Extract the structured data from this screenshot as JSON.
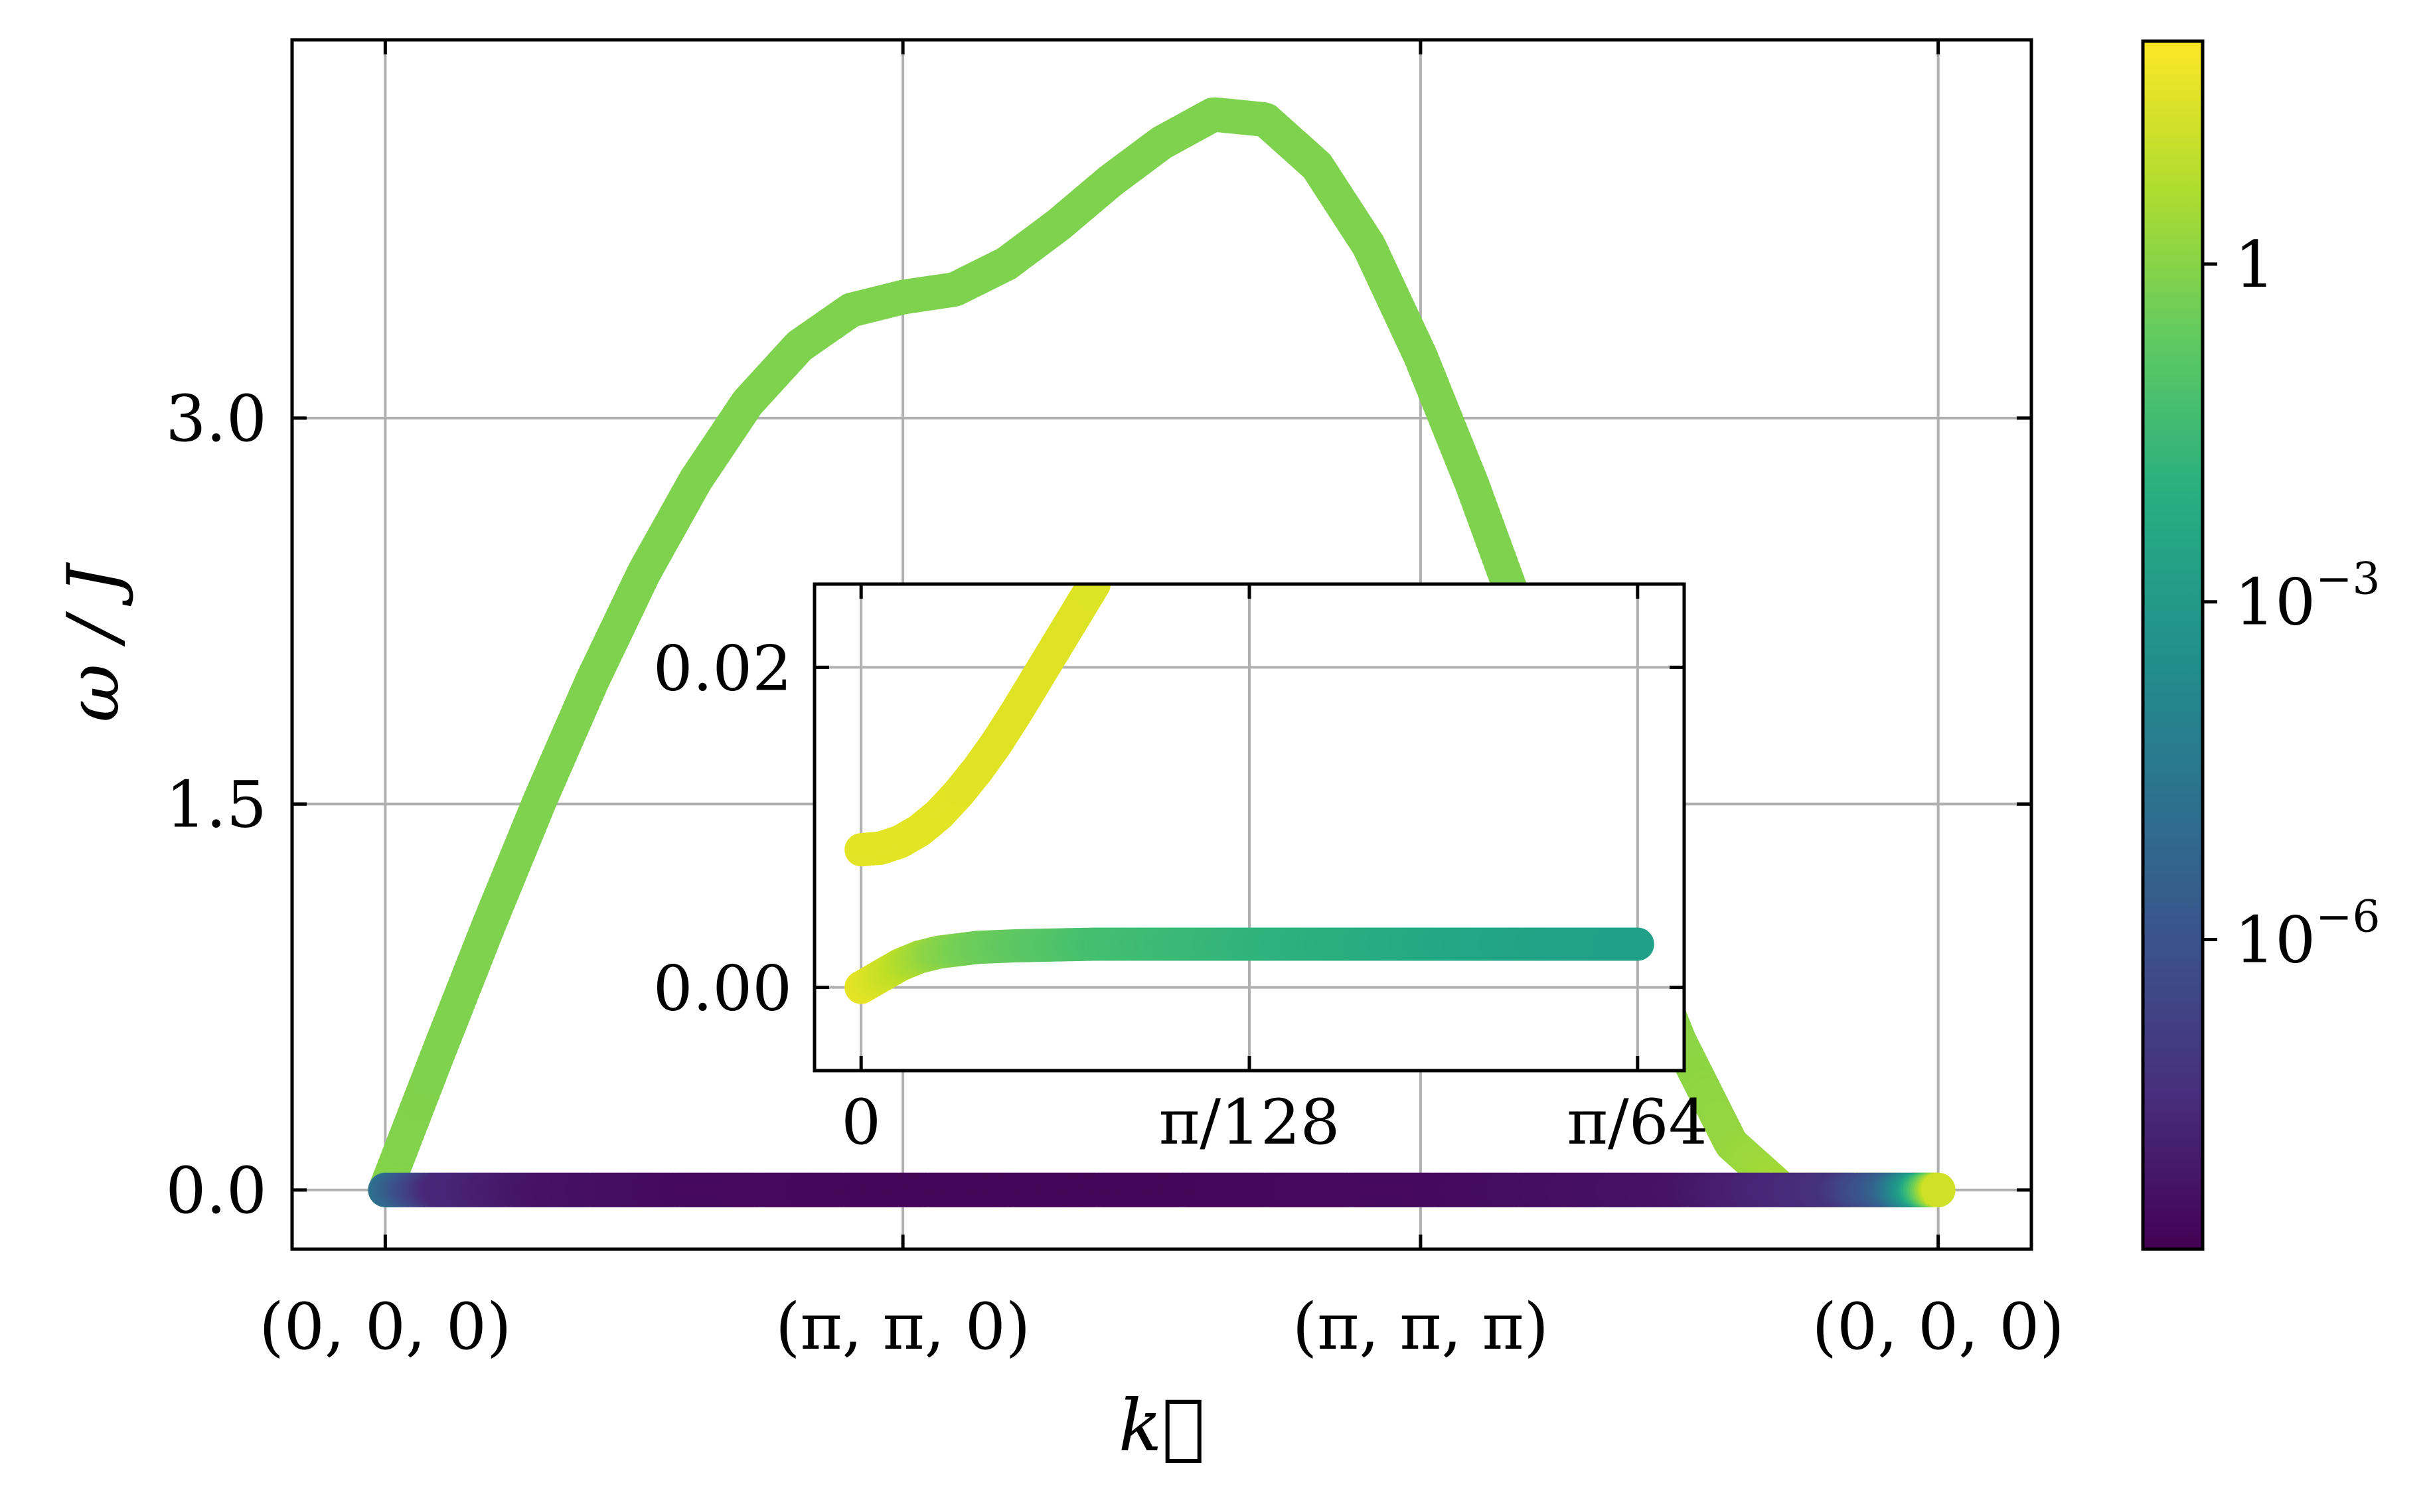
{
  "chart_data": [
    {
      "type": "scatter",
      "role": "main",
      "xlabel": "k⃗",
      "ylabel": "ω / J",
      "x_tick_labels": [
        "(0, 0, 0)",
        "(π, π, 0)",
        "(π, π, π)",
        "(0, 0, 0)"
      ],
      "x_tick_positions": [
        0,
        1,
        2,
        3
      ],
      "xlim": [
        -0.18,
        3.18
      ],
      "y_ticks": [
        0.0,
        1.5,
        3.0
      ],
      "y_tick_labels": [
        "0.0",
        "1.5",
        "3.0"
      ],
      "ylim": [
        -0.23,
        4.47
      ],
      "grid": true,
      "series": [
        {
          "x": [
            0,
            0.1,
            0.2,
            0.3,
            0.4,
            0.5,
            0.6,
            0.7,
            0.8,
            0.9,
            1.0,
            1.1,
            1.2,
            1.3,
            1.4,
            1.5,
            1.6,
            1.7,
            1.8,
            1.9,
            2.0,
            2.1,
            2.2,
            2.3,
            2.4,
            2.5,
            2.6,
            2.7,
            2.8,
            2.9,
            3.0
          ],
          "y": [
            0.0,
            0.52,
            1.03,
            1.52,
            1.98,
            2.4,
            2.76,
            3.06,
            3.28,
            3.42,
            3.47,
            3.5,
            3.6,
            3.75,
            3.92,
            4.07,
            4.18,
            4.16,
            3.98,
            3.67,
            3.24,
            2.74,
            2.19,
            1.63,
            1.08,
            0.58,
            0.18,
            0.0,
            0.0,
            0.0,
            0.0
          ],
          "log_intensity": [
            0.0,
            -0.1,
            -0.1,
            -0.1,
            -0.1,
            -0.1,
            -0.1,
            -0.1,
            -0.1,
            -0.1,
            -0.1,
            -0.1,
            -0.1,
            -0.1,
            -0.1,
            -0.1,
            -0.1,
            -0.1,
            -0.1,
            -0.1,
            -0.1,
            -0.1,
            -0.1,
            -0.1,
            0.05,
            0.1,
            0.25,
            0.5,
            0.8,
            1.1,
            1.3
          ]
        },
        {
          "x": [
            0,
            0.05,
            0.1,
            0.3,
            0.6,
            1.0,
            1.5,
            2.0,
            2.5,
            2.8,
            2.9,
            2.95,
            3.0
          ],
          "y": [
            0.0,
            0.0,
            0.0,
            0.0,
            0.0,
            0.0,
            0.0,
            0.0,
            0.0,
            0.0,
            0.0,
            0.0,
            0.0
          ],
          "log_intensity": [
            -4.8,
            -6.2,
            -7.5,
            -8.2,
            -8.5,
            -8.6,
            -8.6,
            -8.5,
            -8.2,
            -7.2,
            -5.5,
            -3.0,
            1.2
          ]
        }
      ],
      "colorbar": {
        "colormap": "viridis",
        "scale": "log",
        "range_log10": [
          -8.75,
          1.98
        ],
        "ticks_log10": [
          0,
          -3,
          -6
        ],
        "tick_labels": [
          "1",
          "10",
          "10"
        ],
        "tick_exponents": [
          "",
          "−3",
          "−6"
        ]
      }
    },
    {
      "type": "scatter",
      "role": "inset",
      "x_tick_labels": [
        "0",
        "π/128",
        "π/64"
      ],
      "x_tick_positions": [
        0,
        1,
        2
      ],
      "xlim": [
        -0.12,
        2.12
      ],
      "y_ticks": [
        0.0,
        0.02
      ],
      "y_tick_labels": [
        "0.00",
        "0.02"
      ],
      "ylim": [
        -0.0052,
        0.0252
      ],
      "grid": true,
      "series": [
        {
          "x": [
            0.0,
            0.05,
            0.1,
            0.15,
            0.2,
            0.25,
            0.3,
            0.35,
            0.4,
            0.45,
            0.5,
            0.55,
            0.6
          ],
          "y": [
            0.0086,
            0.0087,
            0.0091,
            0.0098,
            0.0108,
            0.0121,
            0.0136,
            0.0153,
            0.0172,
            0.0192,
            0.0212,
            0.0232,
            0.0252
          ],
          "log_intensity": [
            1.55,
            1.55,
            1.55,
            1.54,
            1.53,
            1.52,
            1.51,
            1.5,
            1.49,
            1.48,
            1.47,
            1.46,
            1.45
          ]
        },
        {
          "x": [
            0.0,
            0.05,
            0.1,
            0.15,
            0.2,
            0.3,
            0.4,
            0.6,
            0.8,
            1.0,
            1.2,
            1.4,
            1.6,
            1.8,
            2.0
          ],
          "y": [
            0.0,
            0.0007,
            0.0014,
            0.0019,
            0.0022,
            0.0025,
            0.0026,
            0.0027,
            0.0027,
            0.0027,
            0.0027,
            0.0027,
            0.0027,
            0.0027,
            0.0027
          ],
          "log_intensity": [
            1.6,
            1.3,
            0.9,
            0.5,
            0.1,
            -0.4,
            -0.7,
            -1.2,
            -1.5,
            -1.8,
            -2.0,
            -2.2,
            -2.4,
            -2.6,
            -2.7
          ]
        }
      ]
    }
  ]
}
